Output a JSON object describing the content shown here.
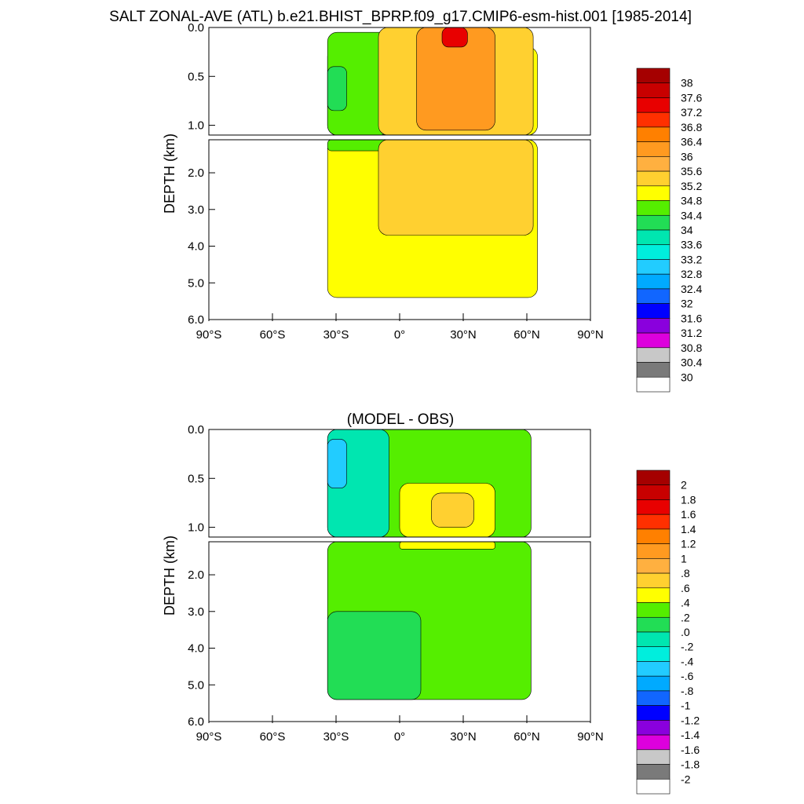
{
  "figure": {
    "title": "SALT ZONAL-AVE (ATL) b.e21.BHIST_BPRP.f09_g17.CMIP6-esm-hist.001 [1985-2014]",
    "subtitle": "(MODEL - OBS)"
  },
  "chart_data": [
    {
      "type": "heatmap",
      "subtype": "filled-contour",
      "title": "SALT ZONAL-AVE (ATL) b.e21.BHIST_BPRP.f09_g17.CMIP6-esm-hist.001 [1985-2014]",
      "ylabel": "DEPTH (km)",
      "xlabel": "",
      "xlim": [
        -90,
        90
      ],
      "ylim_upper": [
        0.0,
        1.1
      ],
      "ylim_lower": [
        1.1,
        6.0
      ],
      "x_ticks": [
        -90,
        -60,
        -30,
        0,
        30,
        60,
        90
      ],
      "x_tick_labels": [
        "90°S",
        "60°S",
        "30°S",
        "0°",
        "30°N",
        "60°N",
        "90°N"
      ],
      "y_ticks_upper": [
        0.0,
        0.5,
        1.0
      ],
      "y_tick_labels_upper": [
        "0.0",
        "0.5",
        "1.0"
      ],
      "y_ticks_lower": [
        2.0,
        3.0,
        4.0,
        5.0,
        6.0
      ],
      "y_tick_labels_lower": [
        "2.0",
        "3.0",
        "4.0",
        "5.0",
        "6.0"
      ],
      "colorbar": {
        "labels": [
          "38",
          "37.6",
          "37.2",
          "36.8",
          "36.4",
          "36",
          "35.6",
          "35.2",
          "34.8",
          "34.4",
          "34",
          "33.6",
          "33.2",
          "32.8",
          "32.4",
          "32",
          "31.6",
          "31.2",
          "30.8",
          "30.4",
          "30"
        ],
        "colors": [
          "#a50000",
          "#c80000",
          "#e80000",
          "#ff3000",
          "#ff8000",
          "#ff9a20",
          "#ffb040",
          "#ffd030",
          "#ffff00",
          "#55ee00",
          "#22dd55",
          "#00e6b0",
          "#00eedd",
          "#22ccff",
          "#00aaff",
          "#1166ff",
          "#0000ff",
          "#8a00dd",
          "#dd00dd",
          "#c8c8c8",
          "#7a7a7a",
          "#ffffff"
        ]
      },
      "fields": [
        {
          "level": "34.8-35.2",
          "color": "#ffff00",
          "lat_range": [
            -34,
            65
          ],
          "depth_range_km": [
            0.2,
            5.4
          ]
        },
        {
          "level": "34.4-34.8",
          "color": "#55ee00",
          "lat_range": [
            -34,
            -5
          ],
          "depth_range_km": [
            0.05,
            1.4
          ]
        },
        {
          "level": "34.0-34.4",
          "color": "#22dd55",
          "lat_range": [
            -34,
            -25
          ],
          "depth_range_km": [
            0.4,
            0.85
          ]
        },
        {
          "level": "35.2-35.6",
          "color": "#ffd030",
          "lat_range": [
            -10,
            63
          ],
          "depth_range_km": [
            0.0,
            3.7
          ]
        },
        {
          "level": "35.6-36.4",
          "color": "#ff9a20",
          "lat_range": [
            8,
            45
          ],
          "depth_range_km": [
            0.0,
            1.05
          ]
        },
        {
          "level": "36.8-37.6",
          "color": "#e80000",
          "lat_range": [
            20,
            32
          ],
          "depth_range_km": [
            0.0,
            0.2
          ]
        }
      ]
    },
    {
      "type": "heatmap",
      "subtype": "filled-contour",
      "title": "(MODEL - OBS)",
      "ylabel": "DEPTH (km)",
      "xlabel": "",
      "xlim": [
        -90,
        90
      ],
      "ylim_upper": [
        0.0,
        1.1
      ],
      "ylim_lower": [
        1.1,
        6.0
      ],
      "x_ticks": [
        -90,
        -60,
        -30,
        0,
        30,
        60,
        90
      ],
      "x_tick_labels": [
        "90°S",
        "60°S",
        "30°S",
        "0°",
        "30°N",
        "60°N",
        "90°N"
      ],
      "y_ticks_upper": [
        0.0,
        0.5,
        1.0
      ],
      "y_tick_labels_upper": [
        "0.0",
        "0.5",
        "1.0"
      ],
      "y_ticks_lower": [
        2.0,
        3.0,
        4.0,
        5.0,
        6.0
      ],
      "y_tick_labels_lower": [
        "2.0",
        "3.0",
        "4.0",
        "5.0",
        "6.0"
      ],
      "colorbar": {
        "labels": [
          "2",
          "1.8",
          "1.6",
          "1.4",
          "1.2",
          "1",
          ".8",
          ".6",
          ".4",
          ".2",
          ".0",
          "-.2",
          "-.4",
          "-.6",
          "-.8",
          "-1",
          "-1.2",
          "-1.4",
          "-1.6",
          "-1.8",
          "-2"
        ],
        "colors": [
          "#a50000",
          "#c80000",
          "#e80000",
          "#ff3000",
          "#ff8000",
          "#ff9a20",
          "#ffb040",
          "#ffd030",
          "#ffff00",
          "#55ee00",
          "#22dd55",
          "#00e6b0",
          "#00eedd",
          "#22ccff",
          "#00aaff",
          "#1166ff",
          "#0000ff",
          "#8a00dd",
          "#dd00dd",
          "#c8c8c8",
          "#7a7a7a",
          "#ffffff"
        ]
      },
      "fields": [
        {
          "level": "0.2-0.4",
          "color": "#55ee00",
          "lat_range": [
            -34,
            62
          ],
          "depth_range_km": [
            0.0,
            5.4
          ]
        },
        {
          "level": "0.0-0.2",
          "color": "#22dd55",
          "lat_range": [
            -34,
            10
          ],
          "depth_range_km": [
            3.0,
            5.4
          ]
        },
        {
          "level": "-0.2-0.0",
          "color": "#00e6b0",
          "lat_range": [
            -34,
            -5
          ],
          "depth_range_km": [
            0.0,
            1.1
          ]
        },
        {
          "level": "-0.8--0.4",
          "color": "#22ccff",
          "lat_range": [
            -34,
            -25
          ],
          "depth_range_km": [
            0.1,
            0.6
          ]
        },
        {
          "level": "0.4-0.8",
          "color": "#ffff00",
          "lat_range": [
            0,
            45
          ],
          "depth_range_km": [
            0.55,
            1.3
          ]
        },
        {
          "level": "0.6-0.8",
          "color": "#ffd030",
          "lat_range": [
            15,
            35
          ],
          "depth_range_km": [
            0.65,
            1.0
          ]
        }
      ]
    }
  ]
}
